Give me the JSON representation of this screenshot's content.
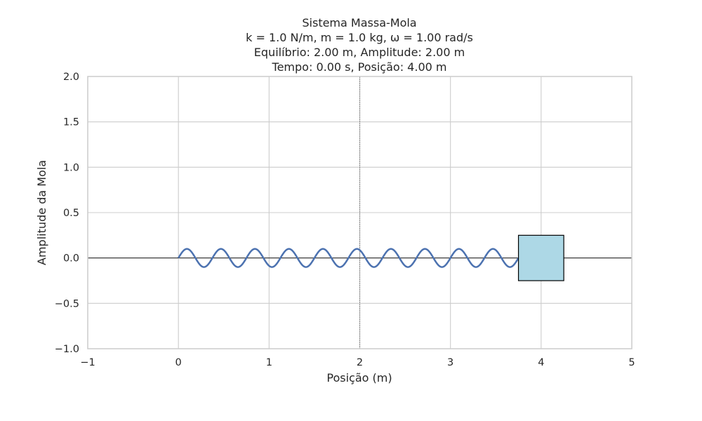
{
  "chart_data": {
    "type": "line",
    "title_lines": [
      "Sistema Massa-Mola",
      "k = 1.0 N/m, m = 1.0 kg, ω = 1.00 rad/s",
      "Equilíbrio: 2.00 m, Amplitude: 2.00 m",
      "Tempo: 0.00 s, Posição: 4.00 m"
    ],
    "xlabel": "Posição (m)",
    "ylabel": "Amplitude da Mola",
    "xlim": [
      -1,
      5
    ],
    "ylim": [
      -1,
      2
    ],
    "xticks": [
      -1,
      0,
      1,
      2,
      3,
      4,
      5
    ],
    "xtick_labels": [
      "−1",
      "0",
      "1",
      "2",
      "3",
      "4",
      "5"
    ],
    "yticks": [
      -1.0,
      -0.5,
      0.0,
      0.5,
      1.0,
      1.5,
      2.0
    ],
    "ytick_labels": [
      "−1.0",
      "−0.5",
      "0.0",
      "0.5",
      "1.0",
      "1.5",
      "2.0"
    ],
    "grid": true,
    "spring": {
      "x_start": 0,
      "x_end": 3.75,
      "amplitude": 0.1,
      "cycles": 10,
      "color": "#4c72b0"
    },
    "mass": {
      "center_x": 4.0,
      "width": 0.5,
      "height": 0.5,
      "color": "#add8e6",
      "edge_color": "#000000"
    },
    "equilibrium_line": {
      "x": 2.0,
      "color": "#808080"
    },
    "zero_line": {
      "y": 0,
      "color": "#000000"
    }
  }
}
